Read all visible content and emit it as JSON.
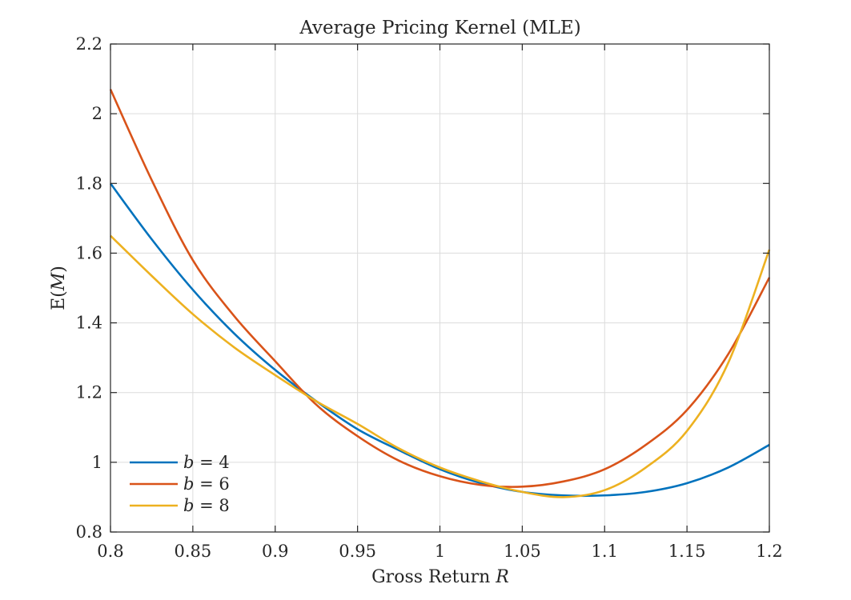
{
  "chart_data": {
    "type": "line",
    "title": "Average Pricing Kernel (MLE)",
    "xlabel": "Gross Return R",
    "xlabel_parts": {
      "text": "Gross Return ",
      "var": "R"
    },
    "ylabel": "E(M)",
    "ylabel_parts": {
      "pre": "E(",
      "var": "M",
      "post": ")"
    },
    "xlim": [
      0.8,
      1.2
    ],
    "ylim": [
      0.8,
      2.2
    ],
    "xticks": [
      0.8,
      0.85,
      0.9,
      0.95,
      1.0,
      1.05,
      1.1,
      1.15,
      1.2
    ],
    "xtick_labels": [
      "0.8",
      "0.85",
      "0.9",
      "0.95",
      "1",
      "1.05",
      "1.1",
      "1.15",
      "1.2"
    ],
    "yticks": [
      0.8,
      1.0,
      1.2,
      1.4,
      1.6,
      1.8,
      2.0,
      2.2
    ],
    "ytick_labels": [
      "0.8",
      "1",
      "1.2",
      "1.4",
      "1.6",
      "1.8",
      "2",
      "2.2"
    ],
    "grid": true,
    "legend_position": "bottom-left",
    "series": [
      {
        "name": "b = 4",
        "label_var": "b",
        "label_rest": " = 4",
        "color": "#0072BD",
        "x": [
          0.8,
          0.825,
          0.85,
          0.875,
          0.9,
          0.925,
          0.95,
          0.975,
          1.0,
          1.025,
          1.05,
          1.075,
          1.1,
          1.125,
          1.15,
          1.175,
          1.2
        ],
        "y": [
          1.8,
          1.64,
          1.495,
          1.37,
          1.265,
          1.175,
          1.095,
          1.035,
          0.98,
          0.94,
          0.915,
          0.905,
          0.905,
          0.915,
          0.94,
          0.985,
          1.05
        ]
      },
      {
        "name": "b = 6",
        "label_var": "b",
        "label_rest": " = 6",
        "color": "#D95319",
        "x": [
          0.8,
          0.825,
          0.85,
          0.875,
          0.9,
          0.925,
          0.95,
          0.975,
          1.0,
          1.025,
          1.05,
          1.075,
          1.1,
          1.125,
          1.15,
          1.175,
          1.2
        ],
        "y": [
          2.07,
          1.81,
          1.58,
          1.42,
          1.29,
          1.165,
          1.075,
          1.005,
          0.96,
          0.935,
          0.93,
          0.945,
          0.98,
          1.05,
          1.15,
          1.31,
          1.53
        ]
      },
      {
        "name": "b = 8",
        "label_var": "b",
        "label_rest": " = 8",
        "color": "#EDB120",
        "x": [
          0.8,
          0.825,
          0.85,
          0.875,
          0.9,
          0.925,
          0.95,
          0.975,
          1.0,
          1.025,
          1.05,
          1.075,
          1.1,
          1.125,
          1.15,
          1.175,
          1.2
        ],
        "y": [
          1.65,
          1.535,
          1.425,
          1.33,
          1.25,
          1.175,
          1.11,
          1.04,
          0.985,
          0.945,
          0.915,
          0.9,
          0.92,
          0.985,
          1.09,
          1.285,
          1.61
        ]
      }
    ]
  }
}
